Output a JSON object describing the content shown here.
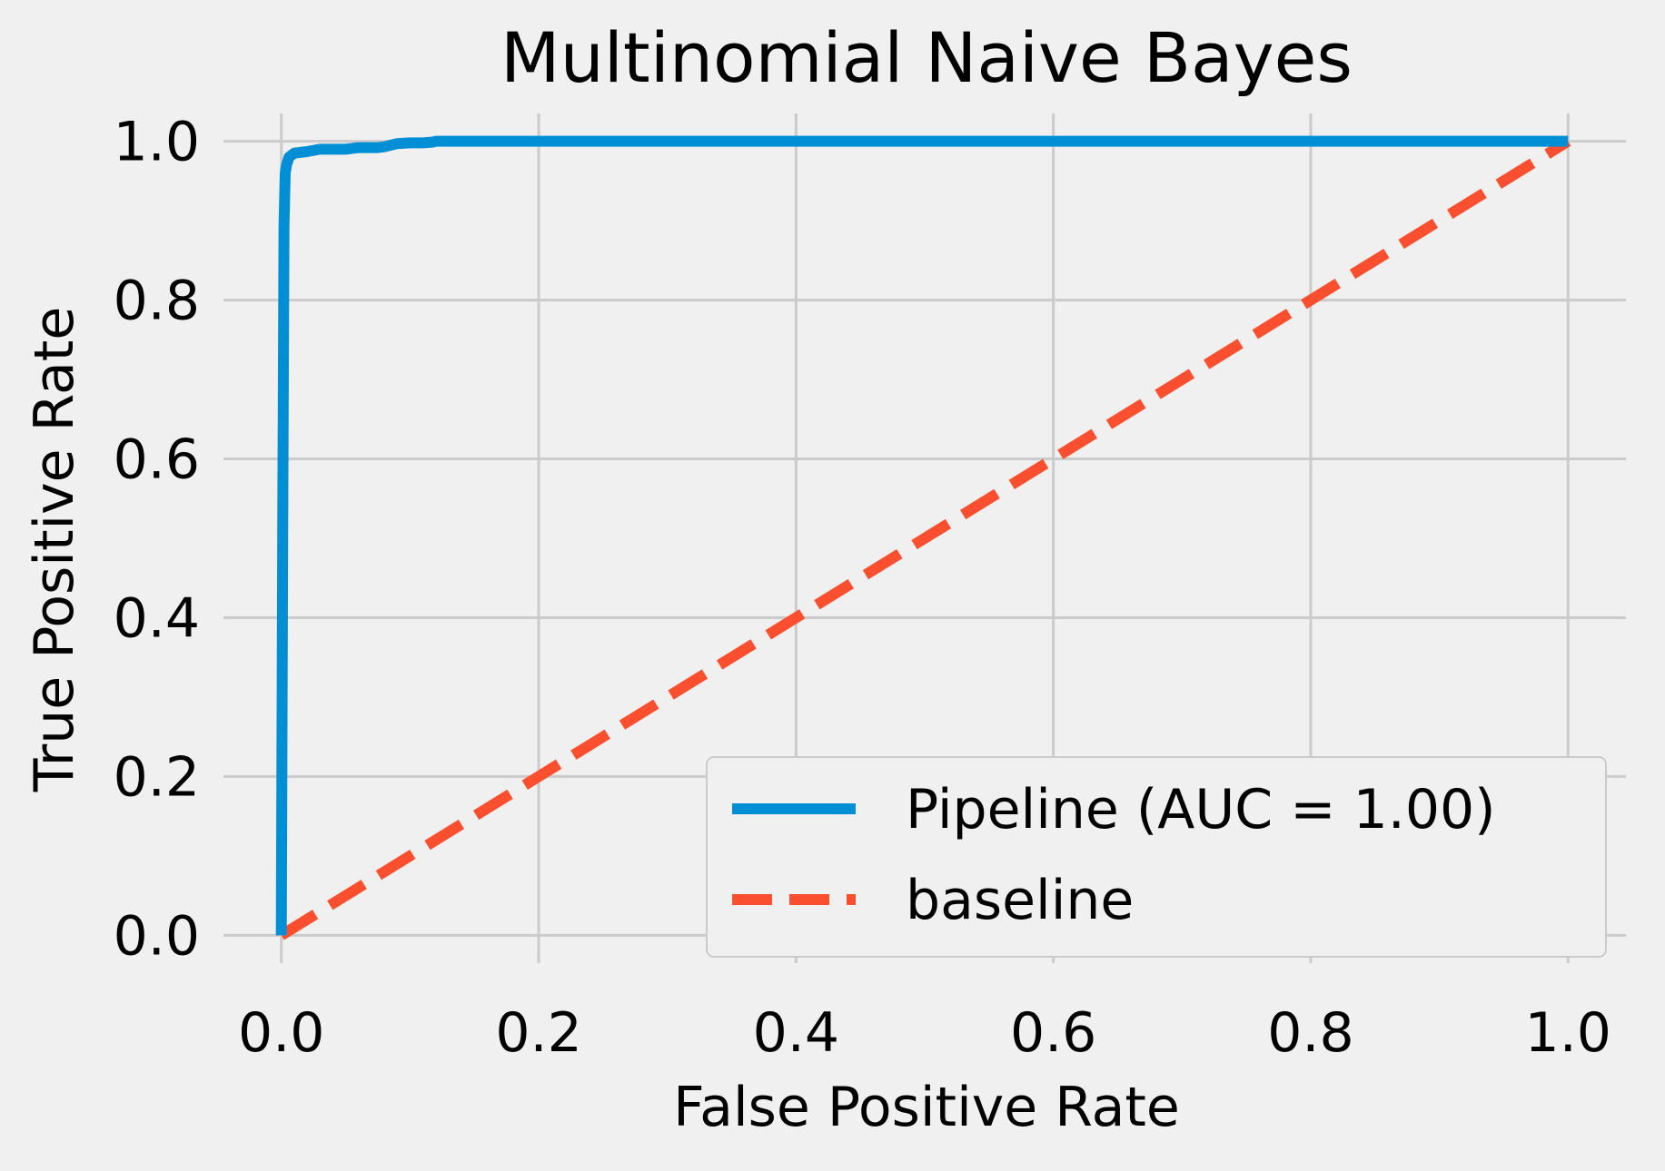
{
  "chart_data": {
    "type": "line",
    "title": "Multinomial Naive Bayes",
    "xlabel": "False Positive Rate",
    "ylabel": "True Positive Rate",
    "xlim": [
      -0.045,
      1.045
    ],
    "ylim": [
      -0.035,
      1.035
    ],
    "xticks": [
      0.0,
      0.2,
      0.4,
      0.6,
      0.8,
      1.0
    ],
    "xtick_labels": [
      "0.0",
      "0.2",
      "0.4",
      "0.6",
      "0.8",
      "1.0"
    ],
    "yticks": [
      0.0,
      0.2,
      0.4,
      0.6,
      0.8,
      1.0
    ],
    "ytick_labels": [
      "0.0",
      "0.2",
      "0.4",
      "0.6",
      "0.8",
      "1.0"
    ],
    "grid": true,
    "legend_position": "lower-right",
    "series": [
      {
        "name": "Pipeline (AUC = 1.00)",
        "style": "solid",
        "color": "#008fd5",
        "x": [
          0.0,
          0.001,
          0.002,
          0.002,
          0.003,
          0.004,
          0.006,
          0.01,
          0.02,
          0.03,
          0.05,
          0.06,
          0.075,
          0.08,
          0.09,
          0.1,
          0.11,
          0.118,
          0.12,
          0.2,
          0.4,
          0.6,
          0.8,
          1.0
        ],
        "y": [
          0.0,
          0.5,
          0.88,
          0.89,
          0.96,
          0.97,
          0.98,
          0.985,
          0.987,
          0.99,
          0.99,
          0.992,
          0.992,
          0.993,
          0.997,
          0.998,
          0.998,
          0.999,
          1.0,
          1.0,
          1.0,
          1.0,
          1.0,
          1.0
        ]
      },
      {
        "name": "baseline",
        "style": "dashed",
        "color": "#fc4f30",
        "x": [
          0.0,
          1.0
        ],
        "y": [
          0.0,
          1.0
        ]
      }
    ]
  },
  "colors": {
    "background": "#f0f0f0",
    "grid": "#cbcbcb",
    "legend_border": "#cbcbcb"
  }
}
